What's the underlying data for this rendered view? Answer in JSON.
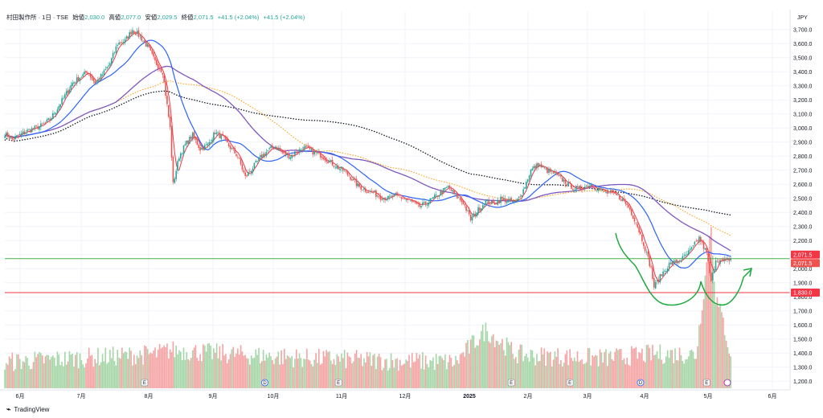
{
  "header": {
    "symbol": "村田製作所 · 1日 · TSE",
    "open_label": "始値",
    "open": "2,030.0",
    "high_label": "高値",
    "high": "2,077.0",
    "low_label": "安値",
    "low": "2,029.5",
    "close_label": "終値",
    "close": "2,071.5",
    "change": "+41.5 (+2.04%)",
    "change2": "+41.5 (+2.04%)"
  },
  "currency": "JPY",
  "footer": {
    "brand": "TradingView"
  },
  "colors": {
    "up": "#26a69a",
    "down": "#ef5350",
    "ma_fast": "#f23645",
    "ma_mid": "#2962ff",
    "ma_slow": "#7e57c2",
    "ma_dot_orange": "#ff9800",
    "ma_dot_black": "#131722",
    "h_green": "#4caf50",
    "h_red": "#f23645",
    "draw": "#1ea93f"
  },
  "chart_data": {
    "type": "candlestick",
    "ylim": [
      1150,
      3830
    ],
    "y_ticks": [
      "3,700.0",
      "3,600.0",
      "3,500.0",
      "3,400.0",
      "3,300.0",
      "3,200.0",
      "3,100.0",
      "3,000.0",
      "2,900.0",
      "2,800.0",
      "2,700.0",
      "2,600.0",
      "2,500.0",
      "2,400.0",
      "2,300.0",
      "2,200.0",
      "2,100.0",
      "2,000.0",
      "1,900.0",
      "1,800.0",
      "1,700.0",
      "1,600.0",
      "1,500.0",
      "1,400.0",
      "1,300.0",
      "1,200.0"
    ],
    "x_ticks": [
      "6月",
      "7月",
      "8月",
      "9月",
      "10月",
      "11月",
      "12月",
      "2025",
      "2月",
      "3月",
      "4月",
      "5月",
      "6月"
    ],
    "price_tags": [
      {
        "label": "2,071.5",
        "color": "#f23645",
        "value": 2100
      },
      {
        "label": "2,071.5",
        "color": "#ef5350",
        "value": 2040
      },
      {
        "label": "1,830.0",
        "color": "#f23645",
        "value": 1830
      }
    ],
    "h_lines": [
      {
        "value": 2071.5,
        "color": "#4caf50"
      },
      {
        "value": 1830,
        "color": "#f23645"
      }
    ],
    "close_path": [
      [
        0,
        2960
      ],
      [
        5,
        2920
      ],
      [
        10,
        2950
      ],
      [
        15,
        2980
      ],
      [
        20,
        3000
      ],
      [
        25,
        3020
      ],
      [
        30,
        3060
      ],
      [
        35,
        3140
      ],
      [
        40,
        3230
      ],
      [
        45,
        3320
      ],
      [
        50,
        3360
      ],
      [
        55,
        3400
      ],
      [
        60,
        3320
      ],
      [
        65,
        3380
      ],
      [
        70,
        3460
      ],
      [
        75,
        3600
      ],
      [
        80,
        3620
      ],
      [
        85,
        3700
      ],
      [
        90,
        3650
      ],
      [
        95,
        3580
      ],
      [
        100,
        3470
      ],
      [
        105,
        3400
      ],
      [
        110,
        3000
      ],
      [
        112,
        2600
      ],
      [
        116,
        2800
      ],
      [
        120,
        2880
      ],
      [
        125,
        2950
      ],
      [
        130,
        2850
      ],
      [
        135,
        2880
      ],
      [
        140,
        2970
      ],
      [
        145,
        2930
      ],
      [
        150,
        2860
      ],
      [
        155,
        2800
      ],
      [
        160,
        2650
      ],
      [
        165,
        2720
      ],
      [
        170,
        2790
      ],
      [
        175,
        2840
      ],
      [
        180,
        2870
      ],
      [
        185,
        2820
      ],
      [
        190,
        2800
      ],
      [
        195,
        2840
      ],
      [
        200,
        2860
      ],
      [
        205,
        2830
      ],
      [
        210,
        2810
      ],
      [
        215,
        2770
      ],
      [
        220,
        2730
      ],
      [
        225,
        2700
      ],
      [
        230,
        2650
      ],
      [
        235,
        2590
      ],
      [
        240,
        2560
      ],
      [
        245,
        2540
      ],
      [
        250,
        2510
      ],
      [
        255,
        2500
      ],
      [
        260,
        2520
      ],
      [
        265,
        2500
      ],
      [
        270,
        2480
      ],
      [
        275,
        2440
      ],
      [
        280,
        2460
      ],
      [
        285,
        2500
      ],
      [
        290,
        2540
      ],
      [
        295,
        2580
      ],
      [
        300,
        2520
      ],
      [
        305,
        2470
      ],
      [
        310,
        2350
      ],
      [
        315,
        2420
      ],
      [
        320,
        2480
      ],
      [
        325,
        2460
      ],
      [
        330,
        2500
      ],
      [
        335,
        2480
      ],
      [
        340,
        2470
      ],
      [
        345,
        2560
      ],
      [
        350,
        2700
      ],
      [
        355,
        2740
      ],
      [
        360,
        2700
      ],
      [
        365,
        2680
      ],
      [
        370,
        2640
      ],
      [
        375,
        2600
      ],
      [
        380,
        2560
      ],
      [
        385,
        2580
      ],
      [
        390,
        2600
      ],
      [
        395,
        2570
      ],
      [
        400,
        2540
      ],
      [
        405,
        2530
      ],
      [
        410,
        2500
      ],
      [
        415,
        2440
      ],
      [
        420,
        2330
      ],
      [
        425,
        2180
      ],
      [
        430,
        2000
      ],
      [
        432,
        1870
      ],
      [
        437,
        1960
      ],
      [
        442,
        2030
      ],
      [
        447,
        2050
      ],
      [
        452,
        2080
      ],
      [
        457,
        2140
      ],
      [
        462,
        2220
      ],
      [
        467,
        2110
      ],
      [
        470,
        1900
      ],
      [
        473,
        2070
      ],
      [
        478,
        2050
      ],
      [
        483,
        2071
      ]
    ],
    "volume_path": [
      [
        0,
        20
      ],
      [
        50,
        25
      ],
      [
        100,
        30
      ],
      [
        110,
        35
      ],
      [
        150,
        30
      ],
      [
        200,
        25
      ],
      [
        250,
        22
      ],
      [
        300,
        20
      ],
      [
        320,
        60
      ],
      [
        340,
        30
      ],
      [
        350,
        28
      ],
      [
        400,
        25
      ],
      [
        430,
        30
      ],
      [
        460,
        30
      ],
      [
        470,
        190
      ],
      [
        473,
        100
      ],
      [
        478,
        70
      ],
      [
        483,
        30
      ]
    ],
    "events": [
      {
        "label": "E",
        "x_index": 93,
        "shape": "square"
      },
      {
        "label": "D",
        "x_index": 173,
        "shape": "circle"
      },
      {
        "label": "E",
        "x_index": 222,
        "shape": "square"
      },
      {
        "label": "E",
        "x_index": 337,
        "shape": "square"
      },
      {
        "label": "E",
        "x_index": 376,
        "shape": "square"
      },
      {
        "label": "D",
        "x_index": 423,
        "shape": "circle"
      },
      {
        "label": "E",
        "x_index": 467,
        "shape": "square"
      }
    ]
  }
}
